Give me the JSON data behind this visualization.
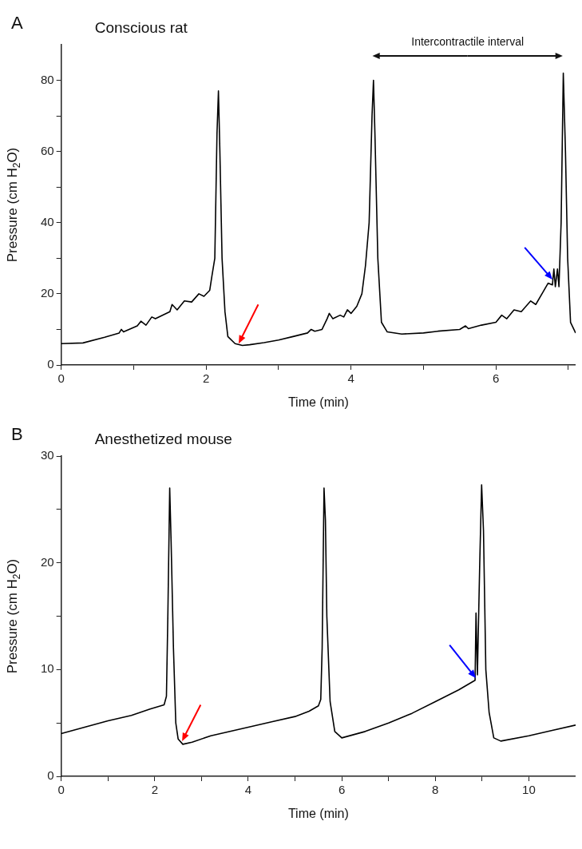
{
  "chart_data": [
    {
      "type": "line",
      "title": "Conscious rat",
      "xlabel": "Time (min)",
      "ylabel": "Pressure (cm H$_{2}$O)",
      "annotations": [
        "A",
        "Intercontractile interval"
      ],
      "xlim": [
        0,
        7.1
      ],
      "ylim": [
        0,
        90
      ],
      "xticks": [
        0,
        {
          "value": 1,
          "label": null
        },
        2,
        {
          "value": 3,
          "label": null
        },
        4,
        {
          "value": 5,
          "label": null
        },
        6,
        {
          "value": 7,
          "label": null
        }
      ],
      "yticks": [
        0,
        {
          "value": 10,
          "label": null
        },
        20,
        {
          "value": 30,
          "label": null
        },
        40,
        {
          "value": 50,
          "label": null
        },
        60,
        {
          "value": 70,
          "label": null
        },
        80
      ],
      "marker": "none",
      "line_style": "solid",
      "series": [
        {
          "color": "#000000",
          "x": [
            0,
            0.3,
            0.6,
            0.8,
            0.83,
            0.86,
            1.05,
            1.1,
            1.17,
            1.25,
            1.3,
            1.5,
            1.53,
            1.6,
            1.7,
            1.8,
            1.9,
            1.97,
            2.05,
            2.08,
            2.12,
            2.15,
            2.17,
            2.19,
            2.22,
            2.26,
            2.3,
            2.4,
            2.5,
            2.6,
            2.8,
            3.0,
            3.2,
            3.4,
            3.45,
            3.5,
            3.6,
            3.67,
            3.7,
            3.75,
            3.85,
            3.9,
            3.95,
            4.0,
            4.08,
            4.15,
            4.2,
            4.25,
            4.29,
            4.31,
            4.33,
            4.37,
            4.42,
            4.5,
            4.7,
            5.0,
            5.2,
            5.5,
            5.58,
            5.62,
            5.8,
            6.0,
            6.08,
            6.15,
            6.25,
            6.35,
            6.48,
            6.55,
            6.65,
            6.72,
            6.78,
            6.8,
            6.82,
            6.85,
            6.87,
            6.9,
            6.93,
            6.96,
            6.99,
            7.03,
            7.1
          ],
          "values": [
            6,
            6.2,
            7.8,
            9,
            10,
            9.3,
            11,
            12.3,
            11.2,
            13.5,
            13,
            15,
            17,
            15.5,
            18,
            17.7,
            20,
            19.3,
            21,
            25,
            30,
            65,
            77,
            60,
            30,
            15,
            8,
            6,
            5.5,
            5.7,
            6.3,
            7,
            8,
            9,
            10,
            9.5,
            10,
            13,
            14.5,
            13,
            14,
            13.5,
            15.5,
            14.5,
            16.5,
            20,
            28,
            40,
            70,
            80,
            65,
            30,
            12,
            9.3,
            8.7,
            9,
            9.5,
            10,
            11,
            10.2,
            11.2,
            12,
            14,
            13,
            15.5,
            15,
            18,
            17,
            20.5,
            23,
            22.5,
            27,
            22,
            27,
            22,
            40,
            82,
            60,
            30,
            12,
            9
          ]
        }
      ]
    },
    {
      "type": "line",
      "title": "Anesthetized mouse",
      "xlabel": "Time (min)",
      "ylabel": "Pressure (cm H$_{2}$O)",
      "annotations": [
        "B"
      ],
      "xlim": [
        0,
        11
      ],
      "ylim": [
        0,
        30
      ],
      "xticks": [
        0,
        {
          "value": 1,
          "label": null
        },
        2,
        {
          "value": 3,
          "label": null
        },
        4,
        {
          "value": 5,
          "label": null
        },
        6,
        {
          "value": 7,
          "label": null
        },
        8,
        {
          "value": 9,
          "label": null
        },
        10
      ],
      "yticks": [
        0,
        {
          "value": 5,
          "label": null
        },
        10,
        {
          "value": 15,
          "label": null
        },
        20,
        {
          "value": 25,
          "label": null
        },
        30
      ],
      "marker": "none",
      "line_style": "solid",
      "series": [
        {
          "color": "#000000",
          "x": [
            0,
            0.5,
            1,
            1.5,
            1.9,
            2.2,
            2.25,
            2.28,
            2.32,
            2.35,
            2.4,
            2.45,
            2.5,
            2.6,
            2.8,
            3.2,
            4,
            4.5,
            5,
            5.3,
            5.5,
            5.55,
            5.58,
            5.62,
            5.65,
            5.68,
            5.75,
            5.85,
            6,
            6.5,
            7,
            7.5,
            8,
            8.5,
            8.85,
            8.87,
            8.9,
            8.95,
            8.99,
            9.03,
            9.08,
            9.15,
            9.25,
            9.4,
            10,
            10.5,
            11
          ],
          "values": [
            4,
            4.6,
            5.2,
            5.7,
            6.3,
            6.7,
            7.5,
            15,
            27,
            22,
            12,
            5,
            3.5,
            3,
            3.2,
            3.8,
            4.6,
            5.1,
            5.6,
            6.1,
            6.6,
            7.2,
            12,
            27,
            24,
            15,
            7,
            4.2,
            3.6,
            4.2,
            5,
            5.9,
            7,
            8.1,
            9,
            15.3,
            9.5,
            20,
            27.3,
            23,
            10,
            6,
            3.6,
            3.3,
            3.8,
            4.3,
            4.8
          ]
        }
      ]
    }
  ]
}
